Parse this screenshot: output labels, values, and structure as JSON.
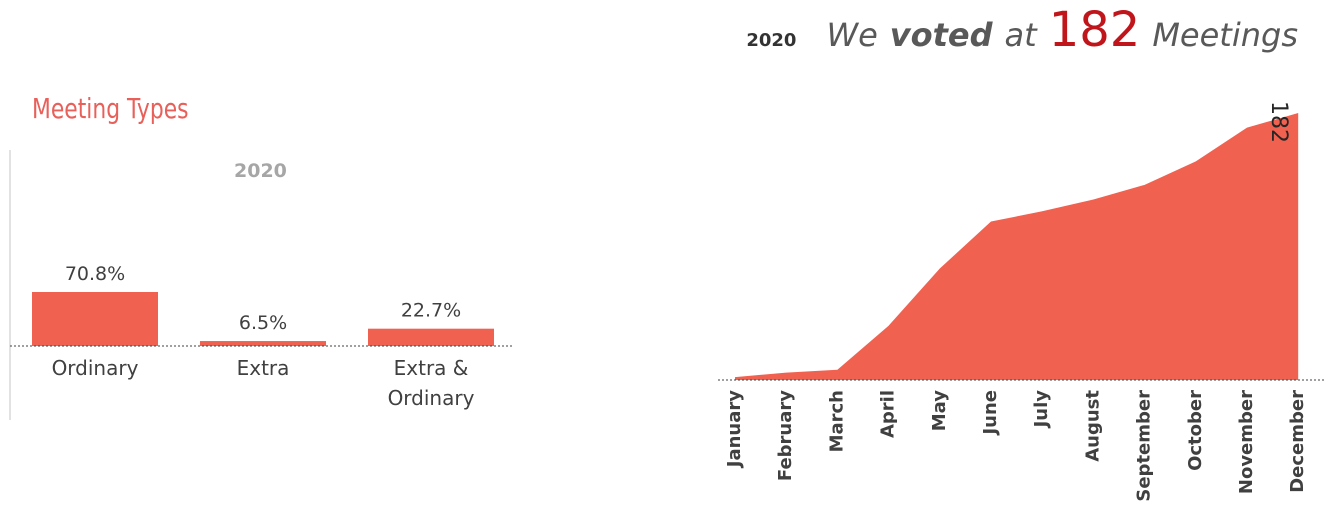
{
  "chart_data": [
    {
      "type": "bar",
      "title": "Meeting Types",
      "subtitle": "2020",
      "categories": [
        "Ordinary",
        "Extra",
        "Extra & Ordinary"
      ],
      "values": [
        70.8,
        6.5,
        22.7
      ],
      "value_labels": [
        "70.8%",
        "6.5%",
        "22.7%"
      ],
      "color": "#f06150"
    },
    {
      "type": "area",
      "year": "2020",
      "headline": [
        "We",
        "voted",
        "at",
        "182",
        "Meetings"
      ],
      "annotation": "182",
      "categories": [
        "January",
        "February",
        "March",
        "April",
        "May",
        "June",
        "July",
        "August",
        "September",
        "October",
        "November",
        "December"
      ],
      "values": [
        2,
        5,
        7,
        37,
        76,
        108,
        115,
        123,
        133,
        149,
        172,
        182
      ],
      "color": "#f06150"
    }
  ]
}
